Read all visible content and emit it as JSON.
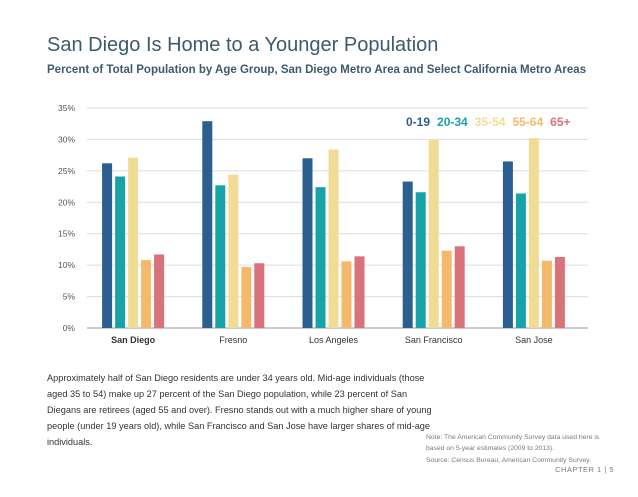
{
  "title": "San Diego Is Home to a Younger Population",
  "subtitle": "Percent of Total Population by Age Group, San Diego Metro Area and Select California Metro Areas",
  "colors": {
    "0-19": "#2b5f8f",
    "20-34": "#18a3a8",
    "35-54": "#f0dc94",
    "55-64": "#f4b96a",
    "65+": "#d9737a",
    "grid": "#dcdcdc",
    "axis": "#9a9a9a"
  },
  "chart_data": {
    "type": "bar",
    "categories": [
      "San Diego",
      "Fresno",
      "Los Angeles",
      "San Francisco",
      "San Jose"
    ],
    "series": [
      {
        "name": "0-19",
        "values": [
          26.2,
          32.9,
          27.0,
          23.3,
          26.5
        ]
      },
      {
        "name": "20-34",
        "values": [
          24.1,
          22.7,
          22.4,
          21.6,
          21.4
        ]
      },
      {
        "name": "35-54",
        "values": [
          27.1,
          24.4,
          28.4,
          29.9,
          30.2
        ]
      },
      {
        "name": "55-64",
        "values": [
          10.8,
          9.7,
          10.6,
          12.3,
          10.7
        ]
      },
      {
        "name": "65+",
        "values": [
          11.7,
          10.3,
          11.4,
          13.0,
          11.3
        ]
      }
    ],
    "y_ticks": [
      "0%",
      "5%",
      "10%",
      "15%",
      "20%",
      "25%",
      "30%",
      "35%"
    ],
    "ylim": [
      0,
      35
    ],
    "legend_position": "top-right",
    "grid": true
  },
  "body_text": "Approximately half of San Diego residents are under 34 years old. Mid-age individuals (those aged 35 to 54) make up 27 percent of the San Diego population, while 23 percent of San Diegans are retirees (aged 55 and over). Fresno stands out with a much higher share of young people (under 19 years old), while San Francisco and San Jose have larger shares of mid-age individuals.",
  "note": "Note: The American Community Survey data used here is based on 5-year estimates (2009 to 2013).",
  "source": "Source: Census Bureau, American Community Survey.",
  "footer": "CHAPTER 1 | 5"
}
